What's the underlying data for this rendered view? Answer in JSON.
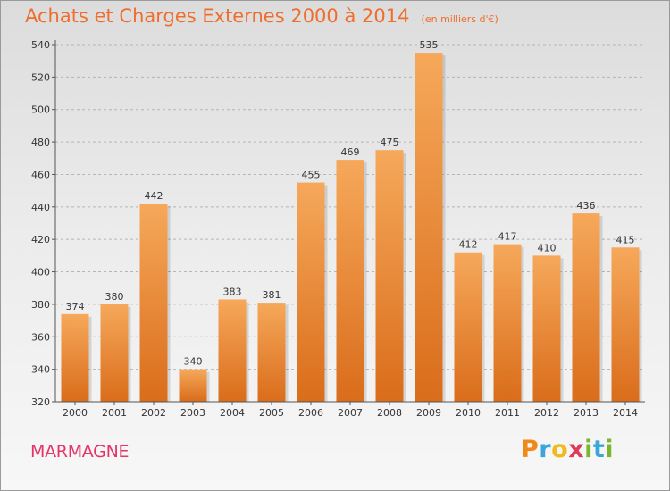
{
  "title": {
    "main": "Achats et Charges Externes 2000 à 2014",
    "unit": "(en milliers d'€)"
  },
  "place": "MARMAGNE",
  "brand": {
    "letters": [
      {
        "char": "P",
        "color": "#ef8a1a"
      },
      {
        "char": "r",
        "color": "#3aa7d8"
      },
      {
        "char": "o",
        "color": "#f0b91e"
      },
      {
        "char": "x",
        "color": "#e03a5a"
      },
      {
        "char": "i",
        "color": "#7ab630"
      },
      {
        "char": "t",
        "color": "#3aa7d8"
      },
      {
        "char": "i",
        "color": "#7ab630"
      }
    ]
  },
  "colors": {
    "bar_top": "#f6a85a",
    "bar_bottom": "#d96d1b",
    "title": "#ef6d2d",
    "place": "#e4356a"
  },
  "chart_data": {
    "type": "bar",
    "categories": [
      "2000",
      "2001",
      "2002",
      "2003",
      "2004",
      "2005",
      "2006",
      "2007",
      "2008",
      "2009",
      "2010",
      "2011",
      "2012",
      "2013",
      "2014"
    ],
    "values": [
      374,
      380,
      442,
      340,
      383,
      381,
      455,
      469,
      475,
      535,
      412,
      417,
      410,
      436,
      415
    ],
    "ylim": [
      320,
      540
    ],
    "yticks": [
      320,
      340,
      360,
      380,
      400,
      420,
      440,
      460,
      480,
      500,
      520,
      540
    ],
    "grid": "horizontal dashed"
  }
}
